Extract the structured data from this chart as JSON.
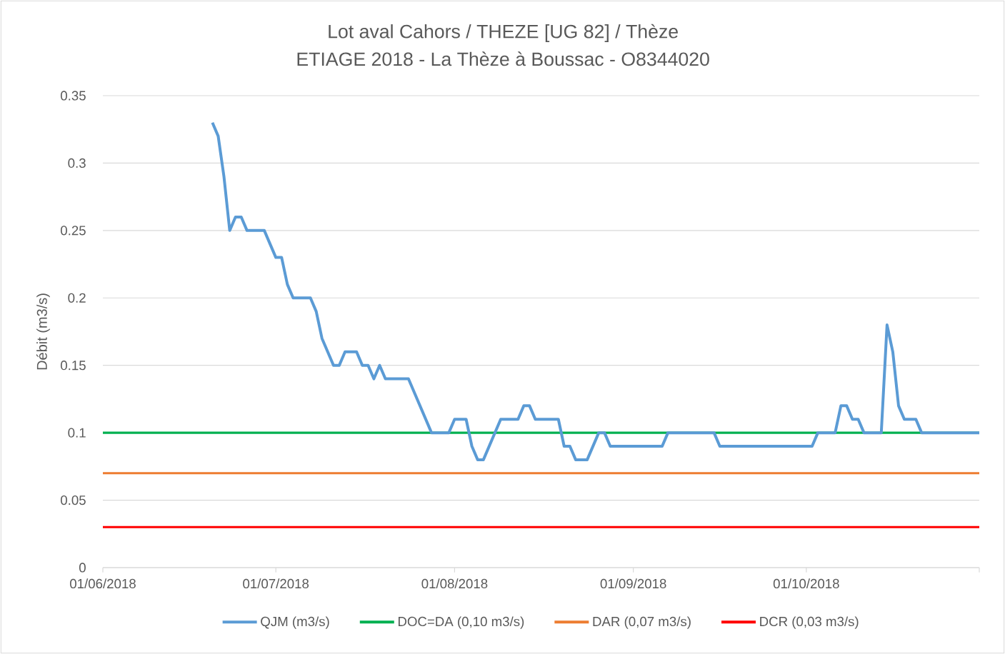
{
  "chart_data": {
    "type": "line",
    "title": "Lot aval Cahors / THEZE [UG 82] / Thèze",
    "subtitle": "ETIAGE 2018 - La Thèze à Boussac - O8344020",
    "ylabel": "Débit (m3/s)",
    "xlim": [
      "2018-06-01",
      "2018-10-31"
    ],
    "xticks": [
      {
        "value": "2018-06-01",
        "label": "01/06/2018"
      },
      {
        "value": "2018-07-01",
        "label": "01/07/2018"
      },
      {
        "value": "2018-08-01",
        "label": "01/08/2018"
      },
      {
        "value": "2018-09-01",
        "label": "01/09/2018"
      },
      {
        "value": "2018-10-01",
        "label": "01/10/2018"
      },
      {
        "value": "2018-10-31",
        "label": null
      }
    ],
    "ylim": [
      0,
      0.35
    ],
    "yticks": [
      0,
      0.05,
      0.1,
      0.15,
      0.2,
      0.25,
      0.3,
      0.35
    ],
    "grid": "y",
    "legend": "bottom",
    "series": [
      {
        "name": "QJM (m3/s)",
        "color": "#5b9bd5",
        "x": [
          "2018-06-20",
          "2018-06-21",
          "2018-06-22",
          "2018-06-23",
          "2018-06-24",
          "2018-06-25",
          "2018-06-26",
          "2018-06-29",
          "2018-07-01",
          "2018-07-02",
          "2018-07-03",
          "2018-07-04",
          "2018-07-07",
          "2018-07-08",
          "2018-07-09",
          "2018-07-11",
          "2018-07-12",
          "2018-07-13",
          "2018-07-15",
          "2018-07-16",
          "2018-07-17",
          "2018-07-18",
          "2018-07-19",
          "2018-07-20",
          "2018-07-24",
          "2018-07-28",
          "2018-07-31",
          "2018-08-01",
          "2018-08-03",
          "2018-08-04",
          "2018-08-05",
          "2018-08-06",
          "2018-08-09",
          "2018-08-12",
          "2018-08-13",
          "2018-08-14",
          "2018-08-15",
          "2018-08-19",
          "2018-08-20",
          "2018-08-21",
          "2018-08-22",
          "2018-08-24",
          "2018-08-26",
          "2018-08-27",
          "2018-08-28",
          "2018-09-06",
          "2018-09-07",
          "2018-09-15",
          "2018-09-16",
          "2018-10-02",
          "2018-10-03",
          "2018-10-06",
          "2018-10-07",
          "2018-10-08",
          "2018-10-09",
          "2018-10-10",
          "2018-10-11",
          "2018-10-14",
          "2018-10-15",
          "2018-10-16",
          "2018-10-17",
          "2018-10-18",
          "2018-10-20",
          "2018-10-21",
          "2018-10-31"
        ],
        "values": [
          0.33,
          0.32,
          0.29,
          0.25,
          0.26,
          0.26,
          0.25,
          0.25,
          0.23,
          0.23,
          0.21,
          0.2,
          0.2,
          0.19,
          0.17,
          0.15,
          0.15,
          0.16,
          0.16,
          0.15,
          0.15,
          0.14,
          0.15,
          0.14,
          0.14,
          0.1,
          0.1,
          0.11,
          0.11,
          0.09,
          0.08,
          0.08,
          0.11,
          0.11,
          0.12,
          0.12,
          0.11,
          0.11,
          0.09,
          0.09,
          0.08,
          0.08,
          0.1,
          0.1,
          0.09,
          0.09,
          0.1,
          0.1,
          0.09,
          0.09,
          0.1,
          0.1,
          0.12,
          0.12,
          0.11,
          0.11,
          0.1,
          0.1,
          0.18,
          0.16,
          0.12,
          0.11,
          0.11,
          0.1,
          0.1
        ]
      },
      {
        "name": "DOC=DA (0,10 m3/s)",
        "color": "#00b050",
        "x": [
          "2018-06-01",
          "2018-10-31"
        ],
        "values": [
          0.1,
          0.1
        ]
      },
      {
        "name": "DAR (0,07 m3/s)",
        "color": "#ed7d31",
        "x": [
          "2018-06-01",
          "2018-10-31"
        ],
        "values": [
          0.07,
          0.07
        ]
      },
      {
        "name": "DCR (0,03 m3/s)",
        "color": "#ff0000",
        "x": [
          "2018-06-01",
          "2018-10-31"
        ],
        "values": [
          0.03,
          0.03
        ]
      }
    ]
  }
}
